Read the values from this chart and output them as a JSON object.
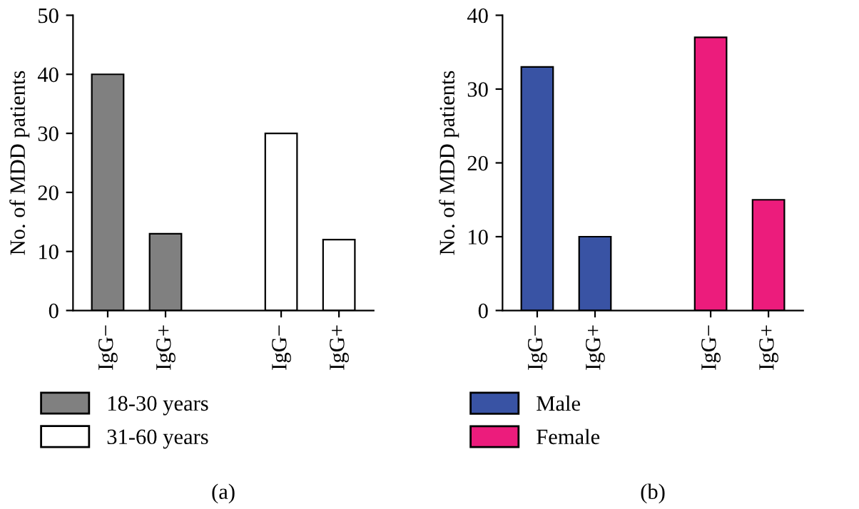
{
  "chart_data": [
    {
      "type": "bar",
      "xlabel": "(a)",
      "ylabel": "No. of MDD patients",
      "categories": [
        "IgG−",
        "IgG+",
        null,
        "IgG−",
        "IgG+"
      ],
      "ylim": [
        0,
        50
      ],
      "yticks": [
        0,
        10,
        20,
        30,
        40,
        50
      ],
      "legend": "bottom",
      "grid": false,
      "series": [
        {
          "name": "18-30 years",
          "color": "#808080",
          "values": [
            40,
            13,
            null,
            null,
            null
          ]
        },
        {
          "name": "31-60 years",
          "color": "#ffffff",
          "values": [
            null,
            null,
            null,
            30,
            12
          ]
        }
      ]
    },
    {
      "type": "bar",
      "xlabel": "(b)",
      "ylabel": "No. of MDD patients",
      "categories": [
        "IgG−",
        "IgG+",
        null,
        "IgG−",
        "IgG+"
      ],
      "ylim": [
        0,
        40
      ],
      "yticks": [
        0,
        10,
        20,
        30,
        40
      ],
      "legend": "bottom",
      "grid": false,
      "series": [
        {
          "name": "Male",
          "color": "#3953a4",
          "values": [
            33,
            10,
            null,
            null,
            null
          ]
        },
        {
          "name": "Female",
          "color": "#ec1c7c",
          "values": [
            null,
            null,
            null,
            37,
            15
          ]
        }
      ]
    }
  ]
}
